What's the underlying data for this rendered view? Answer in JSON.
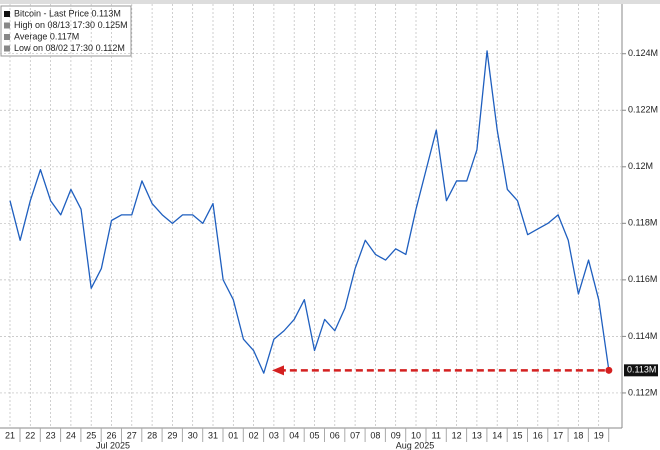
{
  "chart_data": {
    "type": "line",
    "legend": [
      "Bitcoin - Last Price 0.113M",
      "High on 08/13 17:30 0.125M",
      "Average 0.117M",
      "Low on 08/02 17:30 0.112M"
    ],
    "last_price_label": "0.113M",
    "months": [
      "Jul 2025",
      "Aug 2025"
    ],
    "categories": [
      "21",
      null,
      "22",
      null,
      "23",
      null,
      "24",
      null,
      "25",
      null,
      "26",
      null,
      "27",
      null,
      "28",
      null,
      "29",
      null,
      "30",
      null,
      "31",
      null,
      "01",
      null,
      "02",
      null,
      "03",
      null,
      "04",
      null,
      "05",
      null,
      "06",
      null,
      "07",
      null,
      "08",
      null,
      "09",
      null,
      "10",
      null,
      "11",
      null,
      "12",
      null,
      "13",
      null,
      "14",
      null,
      "15",
      null,
      "16",
      null,
      "17",
      null,
      "18",
      null,
      "19",
      null
    ],
    "series": [
      {
        "name": "Bitcoin - Last Price",
        "color": "#1f5fbf",
        "values": [
          0.1188,
          0.1174,
          0.1188,
          0.1199,
          0.1188,
          0.1183,
          0.1192,
          0.1185,
          0.1157,
          0.1164,
          0.1181,
          0.1183,
          0.1183,
          0.1195,
          0.1187,
          0.1183,
          0.118,
          0.1183,
          0.1183,
          0.118,
          0.1187,
          0.116,
          0.1153,
          0.1139,
          0.1135,
          0.1127,
          0.1139,
          0.1142,
          0.1146,
          0.1153,
          0.1135,
          0.1146,
          0.1142,
          0.115,
          0.1164,
          0.1174,
          0.1169,
          0.1167,
          0.1171,
          0.1169,
          0.1185,
          0.1199,
          0.1213,
          0.1188,
          0.1195,
          0.1195,
          0.1206,
          0.1241,
          0.1213,
          0.1192,
          0.1188,
          0.1176,
          0.1178,
          0.118,
          0.1183,
          0.1174,
          0.1155,
          0.1167,
          0.1153,
          0.1128
        ]
      }
    ],
    "ylim": [
      0.11076,
      0.1259
    ],
    "yticks": [
      {
        "value": 0.112,
        "label": "0.112M"
      },
      {
        "value": 0.114,
        "label": "0.114M"
      },
      {
        "value": 0.116,
        "label": "0.116M"
      },
      {
        "value": 0.118,
        "label": "0.118M"
      },
      {
        "value": 0.12,
        "label": "0.12M"
      },
      {
        "value": 0.122,
        "label": "0.122M"
      },
      {
        "value": 0.124,
        "label": "0.124M"
      }
    ],
    "grid": true
  }
}
